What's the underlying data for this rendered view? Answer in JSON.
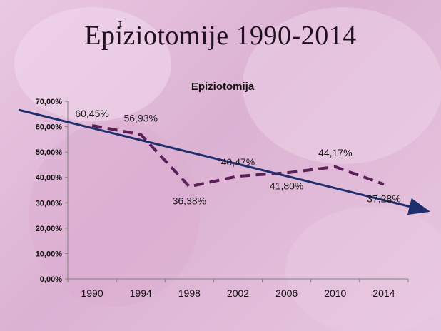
{
  "slide": {
    "title": "Epiziotomije 1990-2014"
  },
  "colors": {
    "series": "#5a1f57",
    "trend": "#1f2f6e",
    "axis": "#808080",
    "grid": "#cfcfcf"
  },
  "chart_data": {
    "type": "line",
    "title": "Epiziotomija",
    "categories": [
      "1990",
      "1994",
      "1998",
      "2002",
      "2006",
      "2010",
      "2014"
    ],
    "series": [
      {
        "values": [
          60.45,
          56.93,
          36.38,
          40.47,
          41.8,
          44.17,
          37.28
        ]
      }
    ],
    "data_labels": [
      "60,45%",
      "56,93%",
      "36,38%",
      "40,47%",
      "41,80%",
      "44,17%",
      "37,28%"
    ],
    "y_ticks": [
      "0,00%",
      "10,00%",
      "20,00%",
      "30,00%",
      "40,00%",
      "50,00%",
      "60,00%",
      "70,00%"
    ],
    "ylim": [
      0,
      70
    ],
    "grid": false,
    "trend_arrow": true,
    "line_style": "dashed"
  }
}
